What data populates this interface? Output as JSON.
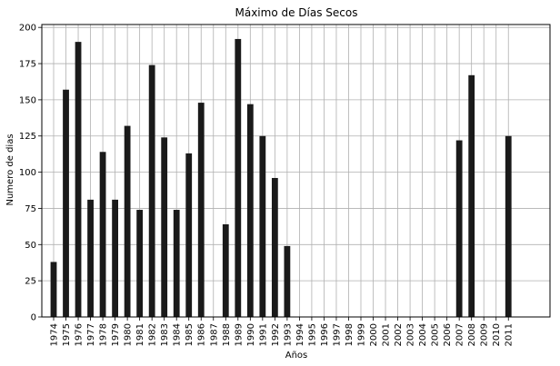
{
  "chart_data": {
    "type": "bar",
    "title": "Máximo de Días Secos",
    "xlabel": "Años",
    "ylabel": "Numero de dias",
    "ylim": [
      0,
      202
    ],
    "yticks": [
      0,
      25,
      50,
      75,
      100,
      125,
      150,
      175,
      200
    ],
    "grid": true,
    "bar_color": "#1a1a1a",
    "categories": [
      "1974",
      "1975",
      "1976",
      "1977",
      "1978",
      "1979",
      "1980",
      "1981",
      "1982",
      "1983",
      "1984",
      "1985",
      "1986",
      "1987",
      "1988",
      "1989",
      "1990",
      "1991",
      "1992",
      "1993",
      "1994",
      "1995",
      "1996",
      "1997",
      "1998",
      "1999",
      "2000",
      "2001",
      "2002",
      "2003",
      "2004",
      "2005",
      "2006",
      "2007",
      "2008",
      "2009",
      "2010",
      "2011"
    ],
    "values": [
      38,
      157,
      190,
      81,
      114,
      81,
      132,
      74,
      174,
      124,
      74,
      113,
      148,
      0,
      64,
      192,
      147,
      125,
      96,
      49,
      0,
      0,
      0,
      0,
      0,
      0,
      0,
      0,
      0,
      0,
      0,
      0,
      0,
      122,
      167,
      0,
      0,
      125
    ]
  }
}
